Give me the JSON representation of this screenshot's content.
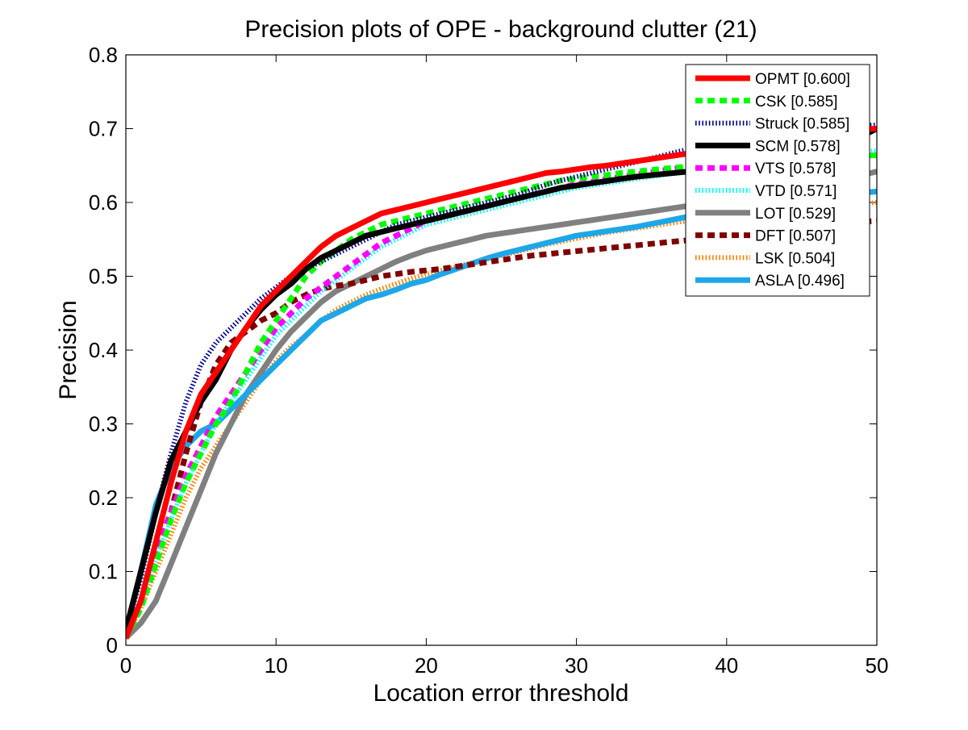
{
  "chart_data": {
    "type": "line",
    "title": "Precision plots of OPE - background clutter (21)",
    "xlabel": "Location error threshold",
    "ylabel": "Precision",
    "xlim": [
      0,
      50
    ],
    "ylim": [
      0,
      0.8
    ],
    "x_ticks": [
      0,
      10,
      20,
      30,
      40,
      50
    ],
    "x_tick_labels": [
      "0",
      "10",
      "20",
      "30",
      "40",
      "50"
    ],
    "y_ticks": [
      0,
      0.1,
      0.2,
      0.3,
      0.4,
      0.5,
      0.6,
      0.7,
      0.8
    ],
    "y_tick_labels": [
      "0",
      "0.1",
      "0.2",
      "0.3",
      "0.4",
      "0.5",
      "0.6",
      "0.7",
      "0.8"
    ],
    "grid": false,
    "legend_position": "top-right",
    "x": [
      0,
      1,
      2,
      3,
      4,
      5,
      6,
      7,
      8,
      9,
      10,
      11,
      12,
      13,
      14,
      15,
      16,
      17,
      18,
      19,
      20,
      21,
      22,
      23,
      24,
      25,
      26,
      27,
      28,
      29,
      30,
      31,
      32,
      33,
      34,
      35,
      36,
      37,
      38,
      39,
      40,
      41,
      42,
      43,
      44,
      45,
      46,
      47,
      48,
      49,
      50
    ],
    "series": [
      {
        "name": "OPMT [0.600]",
        "color": "#ff0000",
        "style": "solid",
        "values": [
          0.01,
          0.06,
          0.14,
          0.22,
          0.29,
          0.34,
          0.37,
          0.4,
          0.43,
          0.46,
          0.48,
          0.5,
          0.52,
          0.54,
          0.555,
          0.565,
          0.575,
          0.585,
          0.59,
          0.595,
          0.6,
          0.605,
          0.61,
          0.615,
          0.62,
          0.625,
          0.63,
          0.635,
          0.64,
          0.642,
          0.645,
          0.648,
          0.65,
          0.653,
          0.656,
          0.659,
          0.662,
          0.665,
          0.668,
          0.671,
          0.674,
          0.677,
          0.68,
          0.683,
          0.686,
          0.689,
          0.692,
          0.695,
          0.697,
          0.699,
          0.7
        ]
      },
      {
        "name": "CSK [0.585]",
        "color": "#00ff00",
        "style": "dashed",
        "values": [
          0.01,
          0.05,
          0.11,
          0.17,
          0.22,
          0.26,
          0.3,
          0.33,
          0.37,
          0.41,
          0.44,
          0.47,
          0.5,
          0.52,
          0.535,
          0.55,
          0.56,
          0.57,
          0.575,
          0.58,
          0.585,
          0.59,
          0.595,
          0.6,
          0.605,
          0.61,
          0.615,
          0.62,
          0.625,
          0.63,
          0.632,
          0.635,
          0.637,
          0.64,
          0.642,
          0.644,
          0.646,
          0.648,
          0.65,
          0.652,
          0.654,
          0.655,
          0.656,
          0.657,
          0.658,
          0.659,
          0.66,
          0.661,
          0.662,
          0.663,
          0.664
        ]
      },
      {
        "name": "Struck [0.585]",
        "color": "#00008b",
        "style": "dotted",
        "values": [
          0.02,
          0.09,
          0.18,
          0.26,
          0.33,
          0.38,
          0.41,
          0.43,
          0.45,
          0.47,
          0.485,
          0.5,
          0.51,
          0.52,
          0.53,
          0.54,
          0.55,
          0.56,
          0.57,
          0.575,
          0.58,
          0.585,
          0.59,
          0.595,
          0.6,
          0.605,
          0.61,
          0.617,
          0.624,
          0.63,
          0.635,
          0.64,
          0.645,
          0.65,
          0.655,
          0.66,
          0.665,
          0.67,
          0.674,
          0.678,
          0.681,
          0.684,
          0.687,
          0.69,
          0.693,
          0.696,
          0.698,
          0.7,
          0.702,
          0.704,
          0.705
        ]
      },
      {
        "name": "SCM [0.578]",
        "color": "#000000",
        "style": "solid",
        "values": [
          0.02,
          0.1,
          0.18,
          0.25,
          0.29,
          0.33,
          0.36,
          0.4,
          0.43,
          0.455,
          0.475,
          0.49,
          0.51,
          0.525,
          0.535,
          0.545,
          0.555,
          0.56,
          0.565,
          0.57,
          0.575,
          0.58,
          0.585,
          0.59,
          0.595,
          0.6,
          0.605,
          0.61,
          0.615,
          0.62,
          0.623,
          0.626,
          0.629,
          0.632,
          0.635,
          0.637,
          0.639,
          0.641,
          0.643,
          0.645,
          0.647,
          0.649,
          0.651,
          0.653,
          0.655,
          0.657,
          0.66,
          0.665,
          0.675,
          0.69,
          0.7
        ]
      },
      {
        "name": "VTS [0.578]",
        "color": "#ff00ff",
        "style": "dashed",
        "values": [
          0.01,
          0.06,
          0.13,
          0.18,
          0.23,
          0.27,
          0.31,
          0.34,
          0.37,
          0.4,
          0.43,
          0.45,
          0.47,
          0.485,
          0.5,
          0.515,
          0.53,
          0.545,
          0.555,
          0.565,
          0.575,
          0.58,
          0.585,
          0.59,
          0.595,
          0.6,
          0.605,
          0.61,
          0.615,
          0.62,
          0.625,
          0.628,
          0.632,
          0.635,
          0.638,
          0.641,
          0.644,
          0.647,
          0.65,
          0.653,
          0.656,
          0.659,
          0.662,
          0.665,
          0.668,
          0.671,
          0.675,
          0.68,
          0.687,
          0.693,
          0.7
        ]
      },
      {
        "name": "VTD [0.571]",
        "color": "#00ffff",
        "style": "dotted",
        "values": [
          0.01,
          0.06,
          0.12,
          0.17,
          0.22,
          0.26,
          0.3,
          0.33,
          0.36,
          0.39,
          0.42,
          0.44,
          0.46,
          0.48,
          0.495,
          0.51,
          0.525,
          0.54,
          0.55,
          0.56,
          0.57,
          0.575,
          0.58,
          0.585,
          0.59,
          0.595,
          0.6,
          0.605,
          0.61,
          0.615,
          0.62,
          0.623,
          0.626,
          0.629,
          0.632,
          0.635,
          0.638,
          0.641,
          0.644,
          0.647,
          0.65,
          0.652,
          0.654,
          0.656,
          0.658,
          0.66,
          0.662,
          0.664,
          0.666,
          0.668,
          0.67
        ]
      },
      {
        "name": "LOT [0.529]",
        "color": "#808080",
        "style": "solid",
        "values": [
          0.01,
          0.03,
          0.06,
          0.11,
          0.16,
          0.21,
          0.26,
          0.3,
          0.34,
          0.37,
          0.4,
          0.425,
          0.445,
          0.465,
          0.48,
          0.49,
          0.5,
          0.51,
          0.52,
          0.528,
          0.535,
          0.54,
          0.545,
          0.55,
          0.555,
          0.558,
          0.561,
          0.564,
          0.567,
          0.57,
          0.573,
          0.576,
          0.579,
          0.582,
          0.585,
          0.588,
          0.591,
          0.594,
          0.597,
          0.6,
          0.603,
          0.606,
          0.609,
          0.612,
          0.615,
          0.618,
          0.622,
          0.627,
          0.632,
          0.637,
          0.642
        ]
      },
      {
        "name": "DFT [0.507]",
        "color": "#800000",
        "style": "dashed",
        "values": [
          0.01,
          0.06,
          0.12,
          0.18,
          0.26,
          0.33,
          0.38,
          0.41,
          0.425,
          0.44,
          0.45,
          0.465,
          0.475,
          0.483,
          0.487,
          0.49,
          0.495,
          0.5,
          0.503,
          0.506,
          0.508,
          0.51,
          0.513,
          0.516,
          0.519,
          0.522,
          0.525,
          0.528,
          0.53,
          0.532,
          0.534,
          0.536,
          0.538,
          0.54,
          0.542,
          0.544,
          0.546,
          0.548,
          0.55,
          0.553,
          0.556,
          0.558,
          0.56,
          0.562,
          0.564,
          0.566,
          0.568,
          0.57,
          0.572,
          0.574,
          0.575
        ]
      },
      {
        "name": "LSK [0.504]",
        "color": "#ff8000",
        "style": "dotted",
        "values": [
          0.01,
          0.05,
          0.1,
          0.15,
          0.2,
          0.24,
          0.27,
          0.3,
          0.33,
          0.36,
          0.385,
          0.405,
          0.42,
          0.44,
          0.455,
          0.465,
          0.475,
          0.483,
          0.49,
          0.497,
          0.503,
          0.508,
          0.513,
          0.518,
          0.523,
          0.528,
          0.533,
          0.538,
          0.543,
          0.547,
          0.551,
          0.555,
          0.559,
          0.562,
          0.565,
          0.568,
          0.571,
          0.574,
          0.576,
          0.578,
          0.58,
          0.582,
          0.584,
          0.586,
          0.588,
          0.59,
          0.592,
          0.594,
          0.596,
          0.598,
          0.6
        ]
      },
      {
        "name": "ASLA [0.496]",
        "color": "#1ea7e8",
        "style": "solid",
        "values": [
          0.02,
          0.1,
          0.19,
          0.24,
          0.27,
          0.29,
          0.3,
          0.32,
          0.34,
          0.36,
          0.38,
          0.4,
          0.42,
          0.44,
          0.45,
          0.46,
          0.47,
          0.475,
          0.482,
          0.49,
          0.495,
          0.503,
          0.51,
          0.517,
          0.524,
          0.53,
          0.535,
          0.54,
          0.545,
          0.55,
          0.555,
          0.558,
          0.561,
          0.564,
          0.567,
          0.571,
          0.575,
          0.579,
          0.583,
          0.587,
          0.59,
          0.593,
          0.596,
          0.599,
          0.602,
          0.605,
          0.607,
          0.609,
          0.611,
          0.613,
          0.615
        ]
      }
    ]
  }
}
